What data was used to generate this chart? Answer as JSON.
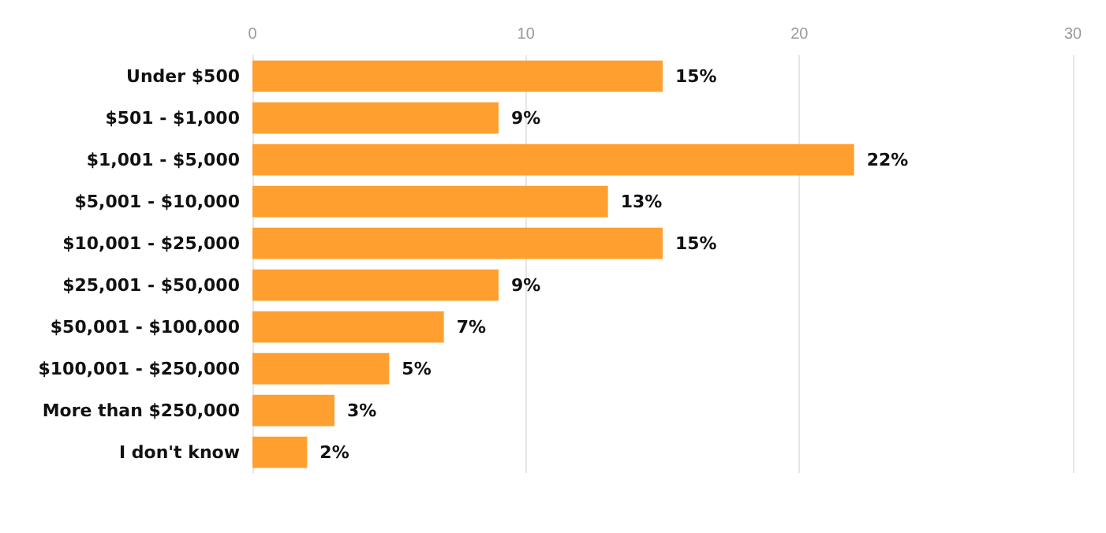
{
  "chart_data": {
    "type": "bar",
    "orientation": "horizontal",
    "categories": [
      "Under $500",
      "$501 - $1,000",
      "$1,001 - $5,000",
      "$5,001 - $10,000",
      "$10,001 - $25,000",
      "$25,001 - $50,000",
      "$50,001 - $100,000",
      "$100,001 - $250,000",
      "More than $250,000",
      "I don't know"
    ],
    "series": [
      {
        "color": "#ff9f2f",
        "values": [
          15,
          9,
          22,
          13,
          15,
          9,
          7,
          5,
          3,
          2
        ],
        "value_labels": [
          "15%",
          "9%",
          "22%",
          "13%",
          "15%",
          "9%",
          "7%",
          "5%",
          "3%",
          "2%"
        ]
      }
    ],
    "xlim": [
      0,
      30
    ],
    "xticks": [
      0,
      10,
      20,
      30
    ],
    "grid": "x"
  }
}
